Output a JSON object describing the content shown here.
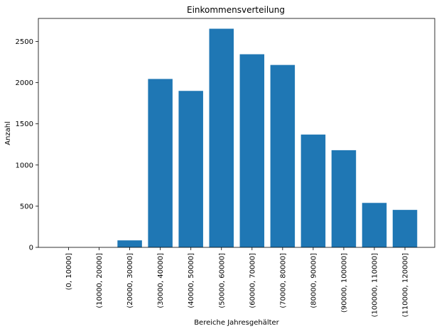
{
  "chart_data": {
    "type": "bar",
    "title": "Einkommensverteilung",
    "xlabel": "Bereiche Jahresgehälter",
    "ylabel": "Anzahl",
    "categories": [
      "(0, 10000]",
      "(10000, 20000]",
      "(20000, 30000]",
      "(30000, 40000]",
      "(40000, 50000]",
      "(50000, 60000]",
      "(60000, 70000]",
      "(70000, 80000]",
      "(80000, 90000]",
      "(90000, 100000]",
      "(100000, 110000]",
      "(110000, 120000]"
    ],
    "values": [
      0,
      0,
      85,
      2045,
      1900,
      2655,
      2345,
      2215,
      1370,
      1180,
      540,
      455
    ],
    "ylim": [
      0,
      2780
    ],
    "yticks": [
      0,
      500,
      1000,
      1500,
      2000,
      2500
    ],
    "bar_color": "#1f77b4",
    "grid": false,
    "legend": "none"
  }
}
